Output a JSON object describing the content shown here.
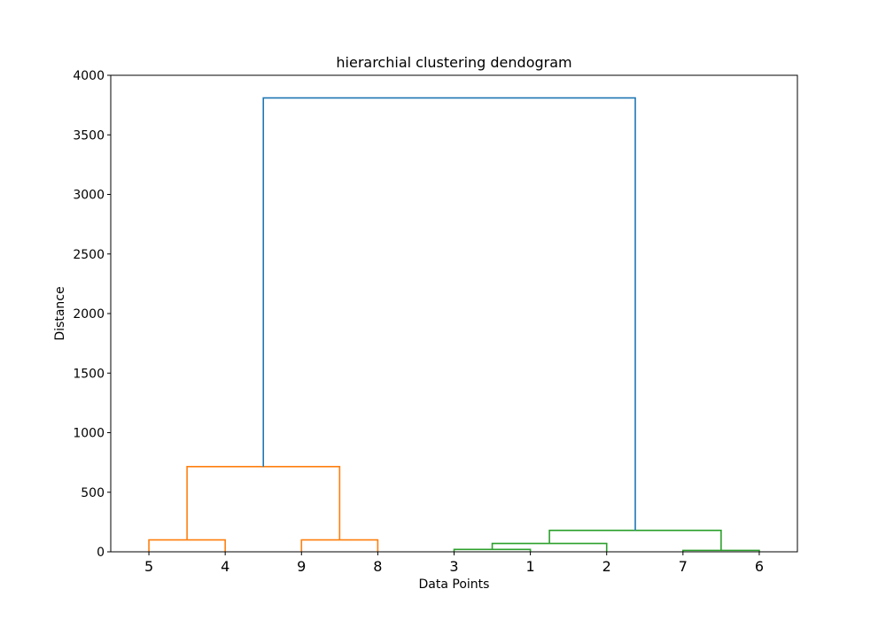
{
  "chart_data": {
    "type": "dendrogram",
    "title": "hierarchial clustering dendogram",
    "xlabel": "Data Points",
    "ylabel": "Distance",
    "ylim": [
      0,
      4000
    ],
    "yticks": [
      0,
      500,
      1000,
      1500,
      2000,
      2500,
      3000,
      3500,
      4000
    ],
    "leaves": [
      "5",
      "4",
      "9",
      "8",
      "3",
      "1",
      "2",
      "7",
      "6"
    ],
    "colors": {
      "orange": "#ff7f0e",
      "green": "#2ca02c",
      "blue": "#1f77b4"
    },
    "links": [
      {
        "left": "5",
        "right": "4",
        "height": 100,
        "color": "orange"
      },
      {
        "left": "9",
        "right": "8",
        "height": 100,
        "color": "orange"
      },
      {
        "left": "c1",
        "right": "c2",
        "height": 715,
        "color": "orange"
      },
      {
        "left": "3",
        "right": "1",
        "height": 20,
        "color": "green"
      },
      {
        "left": "c4",
        "right": "2",
        "height": 70,
        "color": "green"
      },
      {
        "left": "7",
        "right": "6",
        "height": 12,
        "color": "green"
      },
      {
        "left": "c5",
        "right": "c6",
        "height": 180,
        "color": "green"
      },
      {
        "left": "c3",
        "right": "c7",
        "height": 3810,
        "color": "blue"
      }
    ],
    "grid": false
  }
}
